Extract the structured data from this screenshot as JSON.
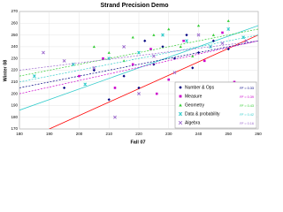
{
  "chart_data": {
    "type": "scatter",
    "title": "Strand Precision Demo",
    "x_label": "Fall 07",
    "y_label": "Winter 08",
    "xlim": [
      180,
      260
    ],
    "xticks": [
      180,
      190,
      200,
      210,
      220,
      230,
      240,
      250,
      260
    ],
    "ylim": [
      170,
      270
    ],
    "yticks": [
      170,
      180,
      190,
      200,
      210,
      220,
      230,
      240,
      250,
      260,
      270
    ],
    "grid": true,
    "legend": "lower right",
    "lines": [
      {
        "color": "#ff0000",
        "x": [
          190,
          260
        ],
        "y": [
          170,
          250
        ]
      },
      {
        "color": "#33cccc",
        "x": [
          180,
          260
        ],
        "y": [
          186,
          258
        ]
      }
    ],
    "series": [
      {
        "name": "Number & Ops",
        "color": "#000080",
        "marker": "diamond",
        "r2_label": "R² = 0.33",
        "trend": [
          205,
          245
        ],
        "x": [
          205,
          210,
          215,
          220,
          225,
          228,
          232,
          236,
          240,
          245,
          250,
          195,
          222,
          238
        ],
        "values": [
          220,
          195,
          215,
          205,
          225,
          240,
          230,
          250,
          235,
          245,
          238,
          205,
          245,
          222
        ]
      },
      {
        "name": "Measure",
        "color": "#cc00cc",
        "marker": "square",
        "r2_label": "R² = 0.39",
        "trend": [
          200,
          245
        ],
        "x": [
          200,
          208,
          212,
          218,
          224,
          230,
          235,
          242,
          248,
          252,
          226
        ],
        "values": [
          215,
          230,
          205,
          225,
          238,
          212,
          245,
          228,
          252,
          210,
          200
        ]
      },
      {
        "name": "Geometry",
        "color": "#33cc33",
        "marker": "triangle",
        "r2_label": "R² = 0.43",
        "trend": [
          215,
          255
        ],
        "x": [
          205,
          210,
          218,
          225,
          230,
          234,
          240,
          245,
          250,
          215,
          238
        ],
        "values": [
          240,
          235,
          248,
          250,
          255,
          240,
          258,
          250,
          262,
          228,
          232
        ]
      },
      {
        "name": "Data & probability",
        "color": "#33cccc",
        "marker": "star",
        "r2_label": "R² = 0.42",
        "trend": [
          210,
          250
        ],
        "x": [
          185,
          198,
          210,
          220,
          228,
          236,
          244,
          250,
          255,
          202
        ],
        "values": [
          215,
          225,
          230,
          235,
          250,
          245,
          240,
          255,
          248,
          208
        ]
      },
      {
        "name": "Algebra",
        "color": "#9966cc",
        "marker": "x",
        "r2_label": "R² = 0.16",
        "trend": [
          220,
          245
        ],
        "x": [
          188,
          195,
          205,
          215,
          225,
          232,
          240,
          248,
          256,
          212,
          220
        ],
        "values": [
          235,
          228,
          222,
          240,
          232,
          218,
          250,
          243,
          245,
          180,
          200
        ]
      }
    ]
  }
}
